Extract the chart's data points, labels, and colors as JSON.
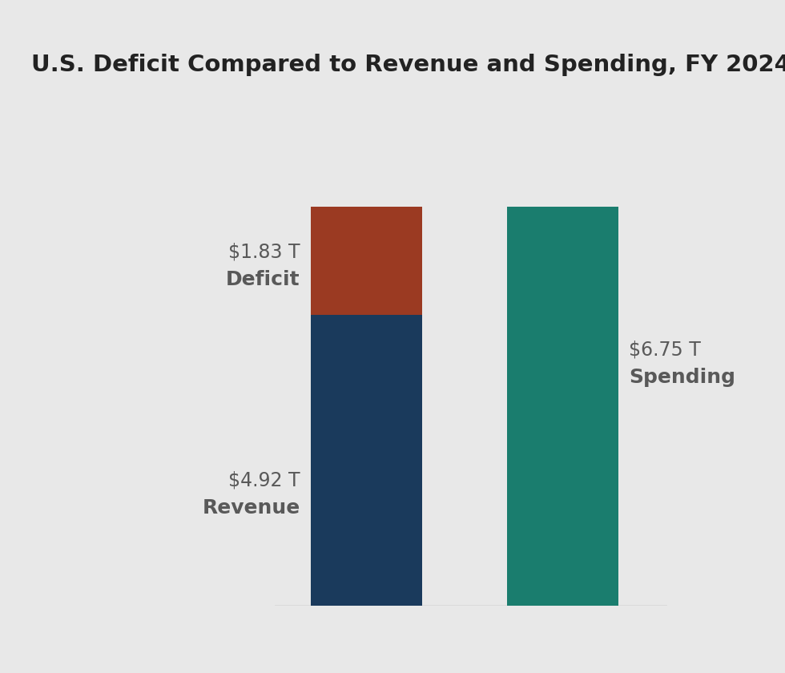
{
  "title": "U.S. Deficit Compared to Revenue and Spending, FY 2024",
  "title_fontsize": 21,
  "background_color": "#e8e8e8",
  "revenue": 4.92,
  "deficit": 1.83,
  "spending": 6.75,
  "revenue_color": "#1a3a5c",
  "deficit_color": "#9b3a22",
  "spending_color": "#1a7d6e",
  "label_color": "#595959",
  "value_fontsize": 17,
  "bold_fontsize": 18,
  "ylim": [
    0,
    8.2
  ],
  "revenue_label": "Revenue",
  "deficit_label": "Deficit",
  "spending_label": "Spending",
  "revenue_value_label": "$4.92 T",
  "deficit_value_label": "$1.83 T",
  "spending_value_label": "$6.75 T"
}
